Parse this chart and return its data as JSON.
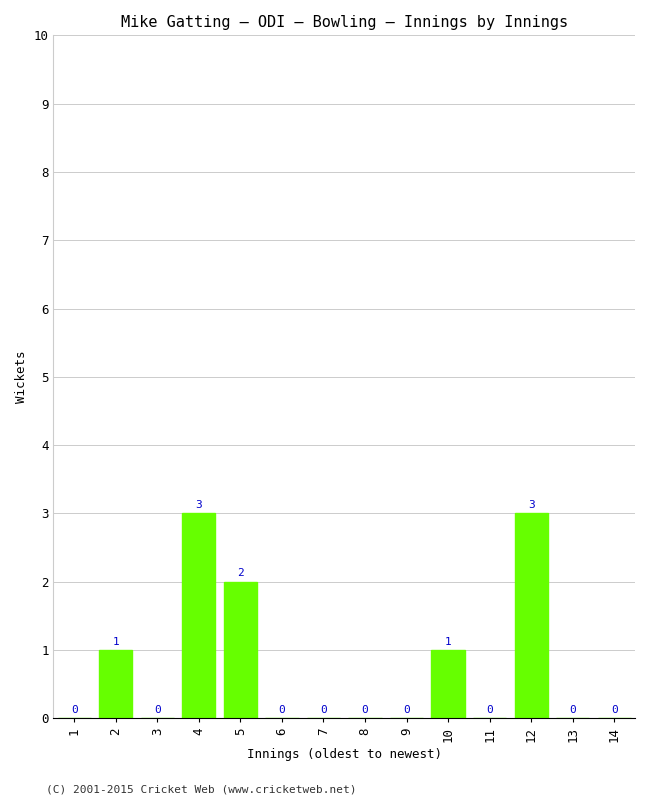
{
  "title": "Mike Gatting – ODI – Bowling – Innings by Innings",
  "xlabel": "Innings (oldest to newest)",
  "ylabel": "Wickets",
  "innings": [
    1,
    2,
    3,
    4,
    5,
    6,
    7,
    8,
    9,
    10,
    11,
    12,
    13,
    14
  ],
  "wickets": [
    0,
    1,
    0,
    3,
    2,
    0,
    0,
    0,
    0,
    1,
    0,
    3,
    0,
    0
  ],
  "bar_color": "#66ff00",
  "label_color": "#0000cc",
  "ylim": [
    0,
    10
  ],
  "yticks": [
    0,
    1,
    2,
    3,
    4,
    5,
    6,
    7,
    8,
    9,
    10
  ],
  "background_color": "#ffffff",
  "grid_color": "#cccccc",
  "footer": "(C) 2001-2015 Cricket Web (www.cricketweb.net)",
  "title_fontsize": 11,
  "axis_label_fontsize": 9,
  "tick_fontsize": 9,
  "annotation_fontsize": 8,
  "footer_fontsize": 8
}
